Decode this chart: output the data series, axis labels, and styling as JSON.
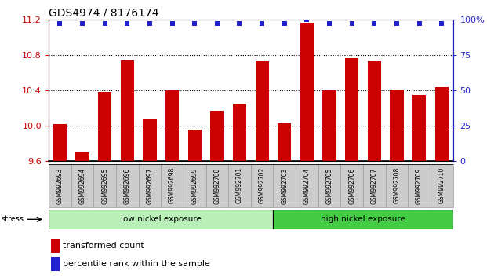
{
  "title": "GDS4974 / 8176174",
  "samples": [
    "GSM992693",
    "GSM992694",
    "GSM992695",
    "GSM992696",
    "GSM992697",
    "GSM992698",
    "GSM992699",
    "GSM992700",
    "GSM992701",
    "GSM992702",
    "GSM992703",
    "GSM992704",
    "GSM992705",
    "GSM992706",
    "GSM992707",
    "GSM992708",
    "GSM992709",
    "GSM992710"
  ],
  "bar_values": [
    10.02,
    9.7,
    10.38,
    10.74,
    10.07,
    10.4,
    9.96,
    10.17,
    10.25,
    10.73,
    10.03,
    11.16,
    10.4,
    10.76,
    10.73,
    10.41,
    10.35,
    10.44
  ],
  "percentile_values_pct": [
    97,
    97,
    97,
    97,
    97,
    97,
    97,
    97,
    97,
    97,
    97,
    100,
    97,
    97,
    97,
    97,
    97,
    97
  ],
  "bar_color": "#cc0000",
  "percentile_color": "#2222cc",
  "ylim_left": [
    9.6,
    11.2
  ],
  "ylim_right": [
    0,
    100
  ],
  "yticks_left": [
    9.6,
    10.0,
    10.4,
    10.8,
    11.2
  ],
  "yticks_right": [
    0,
    25,
    50,
    75,
    100
  ],
  "grid_values": [
    10.0,
    10.4,
    10.8
  ],
  "low_nickel_count": 10,
  "high_nickel_count": 8,
  "group_labels": [
    "low nickel exposure",
    "high nickel exposure"
  ],
  "low_group_color": "#b8f0b8",
  "high_group_color": "#44cc44",
  "stress_label": "stress",
  "legend_bar_label": "transformed count",
  "legend_pct_label": "percentile rank within the sample",
  "bar_width": 0.6,
  "tick_label_color_left": "#cc0000",
  "tick_label_color_right": "#2222cc",
  "title_fontsize": 10,
  "axis_fontsize": 8,
  "legend_fontsize": 8,
  "sample_box_color": "#cccccc",
  "sample_box_edge": "#999999"
}
